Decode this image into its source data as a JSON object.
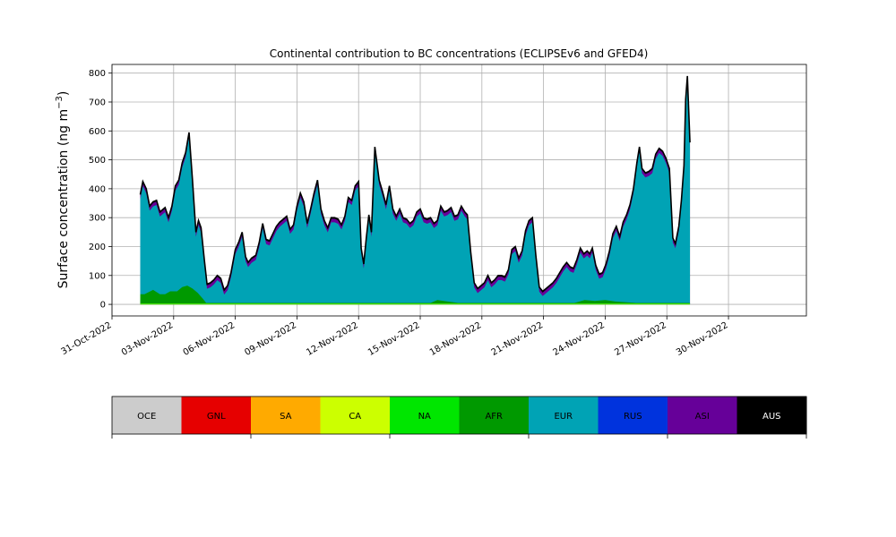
{
  "chart_data": {
    "type": "area",
    "title": "Continental contribution to BC concentrations (ECLIPSEv6 and GFED4)",
    "ylabel": "Surface concentration (ng m",
    "ylabel_exponent": "−3",
    "ylabel_suffix": ")",
    "ylim": [
      -40,
      830
    ],
    "yticks": [
      0,
      100,
      200,
      300,
      400,
      500,
      600,
      700,
      800
    ],
    "xlim": [
      "2022-10-31T00:00",
      "2022-12-03T19:00"
    ],
    "xticks": [
      "31-Oct-2022",
      "03-Nov-2022",
      "06-Nov-2022",
      "09-Nov-2022",
      "12-Nov-2022",
      "15-Nov-2022",
      "18-Nov-2022",
      "21-Nov-2022",
      "24-Nov-2022",
      "27-Nov-2022",
      "30-Nov-2022"
    ],
    "grid": true,
    "legend_placement": "bottom colorbar",
    "legend": [
      {
        "name": "OCE",
        "color": "#cccccc",
        "text_color": "#000000"
      },
      {
        "name": "GNL",
        "color": "#e60000",
        "text_color": "#000000"
      },
      {
        "name": "SA",
        "color": "#ffaa00",
        "text_color": "#000000"
      },
      {
        "name": "CA",
        "color": "#ccff00",
        "text_color": "#000000"
      },
      {
        "name": "NA",
        "color": "#00e600",
        "text_color": "#000000"
      },
      {
        "name": "AFR",
        "color": "#009900",
        "text_color": "#000000"
      },
      {
        "name": "EUR",
        "color": "#00a3b5",
        "text_color": "#000000"
      },
      {
        "name": "RUS",
        "color": "#0033dd",
        "text_color": "#000000"
      },
      {
        "name": "ASI",
        "color": "#660099",
        "text_color": "#000000"
      },
      {
        "name": "AUS",
        "color": "#000000",
        "text_color": "#ffffff"
      }
    ],
    "total_series": {
      "name": "total",
      "points": [
        [
          "2022-11-01T09:00",
          380
        ],
        [
          "2022-11-01T12:00",
          425
        ],
        [
          "2022-11-01T16:00",
          400
        ],
        [
          "2022-11-01T20:00",
          340
        ],
        [
          "2022-11-02T00:00",
          355
        ],
        [
          "2022-11-02T04:00",
          360
        ],
        [
          "2022-11-02T08:00",
          320
        ],
        [
          "2022-11-02T14:00",
          335
        ],
        [
          "2022-11-02T18:00",
          300
        ],
        [
          "2022-11-02T22:00",
          340
        ],
        [
          "2022-11-03T02:00",
          410
        ],
        [
          "2022-11-03T06:00",
          430
        ],
        [
          "2022-11-03T10:00",
          490
        ],
        [
          "2022-11-03T14:00",
          525
        ],
        [
          "2022-11-03T18:00",
          595
        ],
        [
          "2022-11-03T22:00",
          430
        ],
        [
          "2022-11-04T02:00",
          250
        ],
        [
          "2022-11-04T05:00",
          290
        ],
        [
          "2022-11-04T08:00",
          265
        ],
        [
          "2022-11-04T12:00",
          150
        ],
        [
          "2022-11-04T15:00",
          70
        ],
        [
          "2022-11-04T19:00",
          75
        ],
        [
          "2022-11-04T23:00",
          85
        ],
        [
          "2022-11-05T03:00",
          100
        ],
        [
          "2022-11-05T07:00",
          90
        ],
        [
          "2022-11-05T11:00",
          50
        ],
        [
          "2022-11-05T15:00",
          65
        ],
        [
          "2022-11-05T19:00",
          110
        ],
        [
          "2022-11-06T00:00",
          190
        ],
        [
          "2022-11-06T04:00",
          215
        ],
        [
          "2022-11-06T08:00",
          250
        ],
        [
          "2022-11-06T12:00",
          165
        ],
        [
          "2022-11-06T15:00",
          145
        ],
        [
          "2022-11-06T19:00",
          160
        ],
        [
          "2022-11-07T00:00",
          170
        ],
        [
          "2022-11-07T04:00",
          215
        ],
        [
          "2022-11-07T08:00",
          280
        ],
        [
          "2022-11-07T12:00",
          225
        ],
        [
          "2022-11-07T16:00",
          220
        ],
        [
          "2022-11-07T20:00",
          245
        ],
        [
          "2022-11-08T00:00",
          270
        ],
        [
          "2022-11-08T04:00",
          285
        ],
        [
          "2022-11-08T08:00",
          295
        ],
        [
          "2022-11-08T12:00",
          305
        ],
        [
          "2022-11-08T16:00",
          260
        ],
        [
          "2022-11-08T20:00",
          275
        ],
        [
          "2022-11-09T00:00",
          340
        ],
        [
          "2022-11-09T04:00",
          385
        ],
        [
          "2022-11-09T08:00",
          355
        ],
        [
          "2022-11-09T12:00",
          280
        ],
        [
          "2022-11-09T16:00",
          330
        ],
        [
          "2022-11-09T20:00",
          385
        ],
        [
          "2022-11-10T00:00",
          430
        ],
        [
          "2022-11-10T04:00",
          330
        ],
        [
          "2022-11-10T08:00",
          290
        ],
        [
          "2022-11-10T12:00",
          265
        ],
        [
          "2022-11-10T16:00",
          300
        ],
        [
          "2022-11-10T20:00",
          300
        ],
        [
          "2022-11-11T00:00",
          295
        ],
        [
          "2022-11-11T04:00",
          275
        ],
        [
          "2022-11-11T08:00",
          305
        ],
        [
          "2022-11-11T12:00",
          370
        ],
        [
          "2022-11-11T16:00",
          360
        ],
        [
          "2022-11-11T20:00",
          410
        ],
        [
          "2022-11-12T00:00",
          425
        ],
        [
          "2022-11-12T03:00",
          195
        ],
        [
          "2022-11-12T06:00",
          140
        ],
        [
          "2022-11-12T09:00",
          230
        ],
        [
          "2022-11-12T12:00",
          310
        ],
        [
          "2022-11-12T15:00",
          250
        ],
        [
          "2022-11-12T19:00",
          545
        ],
        [
          "2022-11-13T00:00",
          430
        ],
        [
          "2022-11-13T04:00",
          390
        ],
        [
          "2022-11-13T08:00",
          345
        ],
        [
          "2022-11-13T12:00",
          410
        ],
        [
          "2022-11-13T16:00",
          330
        ],
        [
          "2022-11-13T20:00",
          305
        ],
        [
          "2022-11-14T00:00",
          330
        ],
        [
          "2022-11-14T04:00",
          300
        ],
        [
          "2022-11-14T08:00",
          295
        ],
        [
          "2022-11-14T12:00",
          280
        ],
        [
          "2022-11-14T16:00",
          290
        ],
        [
          "2022-11-14T20:00",
          320
        ],
        [
          "2022-11-15T00:00",
          330
        ],
        [
          "2022-11-15T04:00",
          300
        ],
        [
          "2022-11-15T08:00",
          295
        ],
        [
          "2022-11-15T12:00",
          300
        ],
        [
          "2022-11-15T16:00",
          280
        ],
        [
          "2022-11-15T20:00",
          290
        ],
        [
          "2022-11-16T00:00",
          340
        ],
        [
          "2022-11-16T04:00",
          320
        ],
        [
          "2022-11-16T08:00",
          325
        ],
        [
          "2022-11-16T12:00",
          335
        ],
        [
          "2022-11-16T16:00",
          305
        ],
        [
          "2022-11-16T20:00",
          310
        ],
        [
          "2022-11-17T00:00",
          340
        ],
        [
          "2022-11-17T04:00",
          320
        ],
        [
          "2022-11-17T07:00",
          310
        ],
        [
          "2022-11-17T11:00",
          180
        ],
        [
          "2022-11-17T15:00",
          75
        ],
        [
          "2022-11-17T19:00",
          55
        ],
        [
          "2022-11-17T23:00",
          65
        ],
        [
          "2022-11-18T03:00",
          75
        ],
        [
          "2022-11-18T07:00",
          100
        ],
        [
          "2022-11-18T11:00",
          75
        ],
        [
          "2022-11-18T15:00",
          85
        ],
        [
          "2022-11-18T19:00",
          100
        ],
        [
          "2022-11-18T23:00",
          100
        ],
        [
          "2022-11-19T03:00",
          95
        ],
        [
          "2022-11-19T07:00",
          120
        ],
        [
          "2022-11-19T11:00",
          190
        ],
        [
          "2022-11-19T15:00",
          200
        ],
        [
          "2022-11-19T19:00",
          160
        ],
        [
          "2022-11-19T23:00",
          185
        ],
        [
          "2022-11-20T03:00",
          255
        ],
        [
          "2022-11-20T07:00",
          290
        ],
        [
          "2022-11-20T11:00",
          300
        ],
        [
          "2022-11-20T15:00",
          170
        ],
        [
          "2022-11-20T19:00",
          60
        ],
        [
          "2022-11-20T23:00",
          45
        ],
        [
          "2022-11-21T03:00",
          55
        ],
        [
          "2022-11-21T07:00",
          65
        ],
        [
          "2022-11-21T11:00",
          75
        ],
        [
          "2022-11-21T15:00",
          90
        ],
        [
          "2022-11-21T19:00",
          110
        ],
        [
          "2022-11-21T23:00",
          130
        ],
        [
          "2022-11-22T03:00",
          145
        ],
        [
          "2022-11-22T07:00",
          130
        ],
        [
          "2022-11-22T11:00",
          125
        ],
        [
          "2022-11-22T15:00",
          155
        ],
        [
          "2022-11-22T19:00",
          195
        ],
        [
          "2022-11-22T23:00",
          175
        ],
        [
          "2022-11-23T03:00",
          185
        ],
        [
          "2022-11-23T06:00",
          175
        ],
        [
          "2022-11-23T09:00",
          195
        ],
        [
          "2022-11-23T13:00",
          135
        ],
        [
          "2022-11-23T17:00",
          105
        ],
        [
          "2022-11-23T21:00",
          110
        ],
        [
          "2022-11-24T01:00",
          140
        ],
        [
          "2022-11-24T05:00",
          185
        ],
        [
          "2022-11-24T09:00",
          245
        ],
        [
          "2022-11-24T13:00",
          270
        ],
        [
          "2022-11-24T17:00",
          235
        ],
        [
          "2022-11-24T21:00",
          285
        ],
        [
          "2022-11-25T01:00",
          310
        ],
        [
          "2022-11-25T05:00",
          345
        ],
        [
          "2022-11-25T09:00",
          400
        ],
        [
          "2022-11-25T13:00",
          490
        ],
        [
          "2022-11-25T16:00",
          545
        ],
        [
          "2022-11-25T19:00",
          470
        ],
        [
          "2022-11-25T23:00",
          455
        ],
        [
          "2022-11-26T03:00",
          460
        ],
        [
          "2022-11-26T07:00",
          470
        ],
        [
          "2022-11-26T11:00",
          520
        ],
        [
          "2022-11-26T15:00",
          540
        ],
        [
          "2022-11-26T19:00",
          530
        ],
        [
          "2022-11-26T23:00",
          505
        ],
        [
          "2022-11-27T03:00",
          470
        ],
        [
          "2022-11-27T07:00",
          230
        ],
        [
          "2022-11-27T10:00",
          210
        ],
        [
          "2022-11-27T14:00",
          270
        ],
        [
          "2022-11-27T17:00",
          360
        ],
        [
          "2022-11-27T20:00",
          480
        ],
        [
          "2022-11-27T22:00",
          710
        ],
        [
          "2022-11-28T00:00",
          790
        ],
        [
          "2022-11-28T03:00",
          560
        ]
      ]
    },
    "afr_series": {
      "name": "AFR",
      "points": [
        [
          "2022-11-01T09:00",
          35
        ],
        [
          "2022-11-01T14:00",
          35
        ],
        [
          "2022-11-02T00:00",
          50
        ],
        [
          "2022-11-02T08:00",
          35
        ],
        [
          "2022-11-02T14:00",
          35
        ],
        [
          "2022-11-02T20:00",
          45
        ],
        [
          "2022-11-03T04:00",
          45
        ],
        [
          "2022-11-03T10:00",
          60
        ],
        [
          "2022-11-03T16:00",
          65
        ],
        [
          "2022-11-03T22:00",
          55
        ],
        [
          "2022-11-04T04:00",
          40
        ],
        [
          "2022-11-04T10:00",
          20
        ],
        [
          "2022-11-04T14:00",
          5
        ],
        [
          "2022-11-12T00:00",
          5
        ],
        [
          "2022-11-15T12:00",
          5
        ],
        [
          "2022-11-15T20:00",
          15
        ],
        [
          "2022-11-16T08:00",
          10
        ],
        [
          "2022-11-16T20:00",
          5
        ],
        [
          "2022-11-22T12:00",
          5
        ],
        [
          "2022-11-23T00:00",
          15
        ],
        [
          "2022-11-23T12:00",
          12
        ],
        [
          "2022-11-24T00:00",
          15
        ],
        [
          "2022-11-24T12:00",
          10
        ],
        [
          "2022-11-25T12:00",
          5
        ],
        [
          "2022-11-28T03:00",
          5
        ]
      ]
    },
    "asi_band": 12,
    "aus_band": 4
  }
}
